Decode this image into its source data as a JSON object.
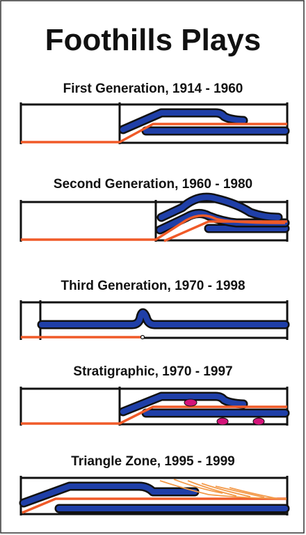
{
  "title": "Foothills Plays",
  "sections": [
    {
      "title": "First Generation, 1914 - 1960"
    },
    {
      "title": "Second Generation, 1960 - 1980"
    },
    {
      "title": "Third Generation, 1970 - 1998"
    },
    {
      "title": "Stratigraphic, 1970 - 1997"
    },
    {
      "title": "Triangle Zone, 1995 - 1999"
    }
  ]
}
